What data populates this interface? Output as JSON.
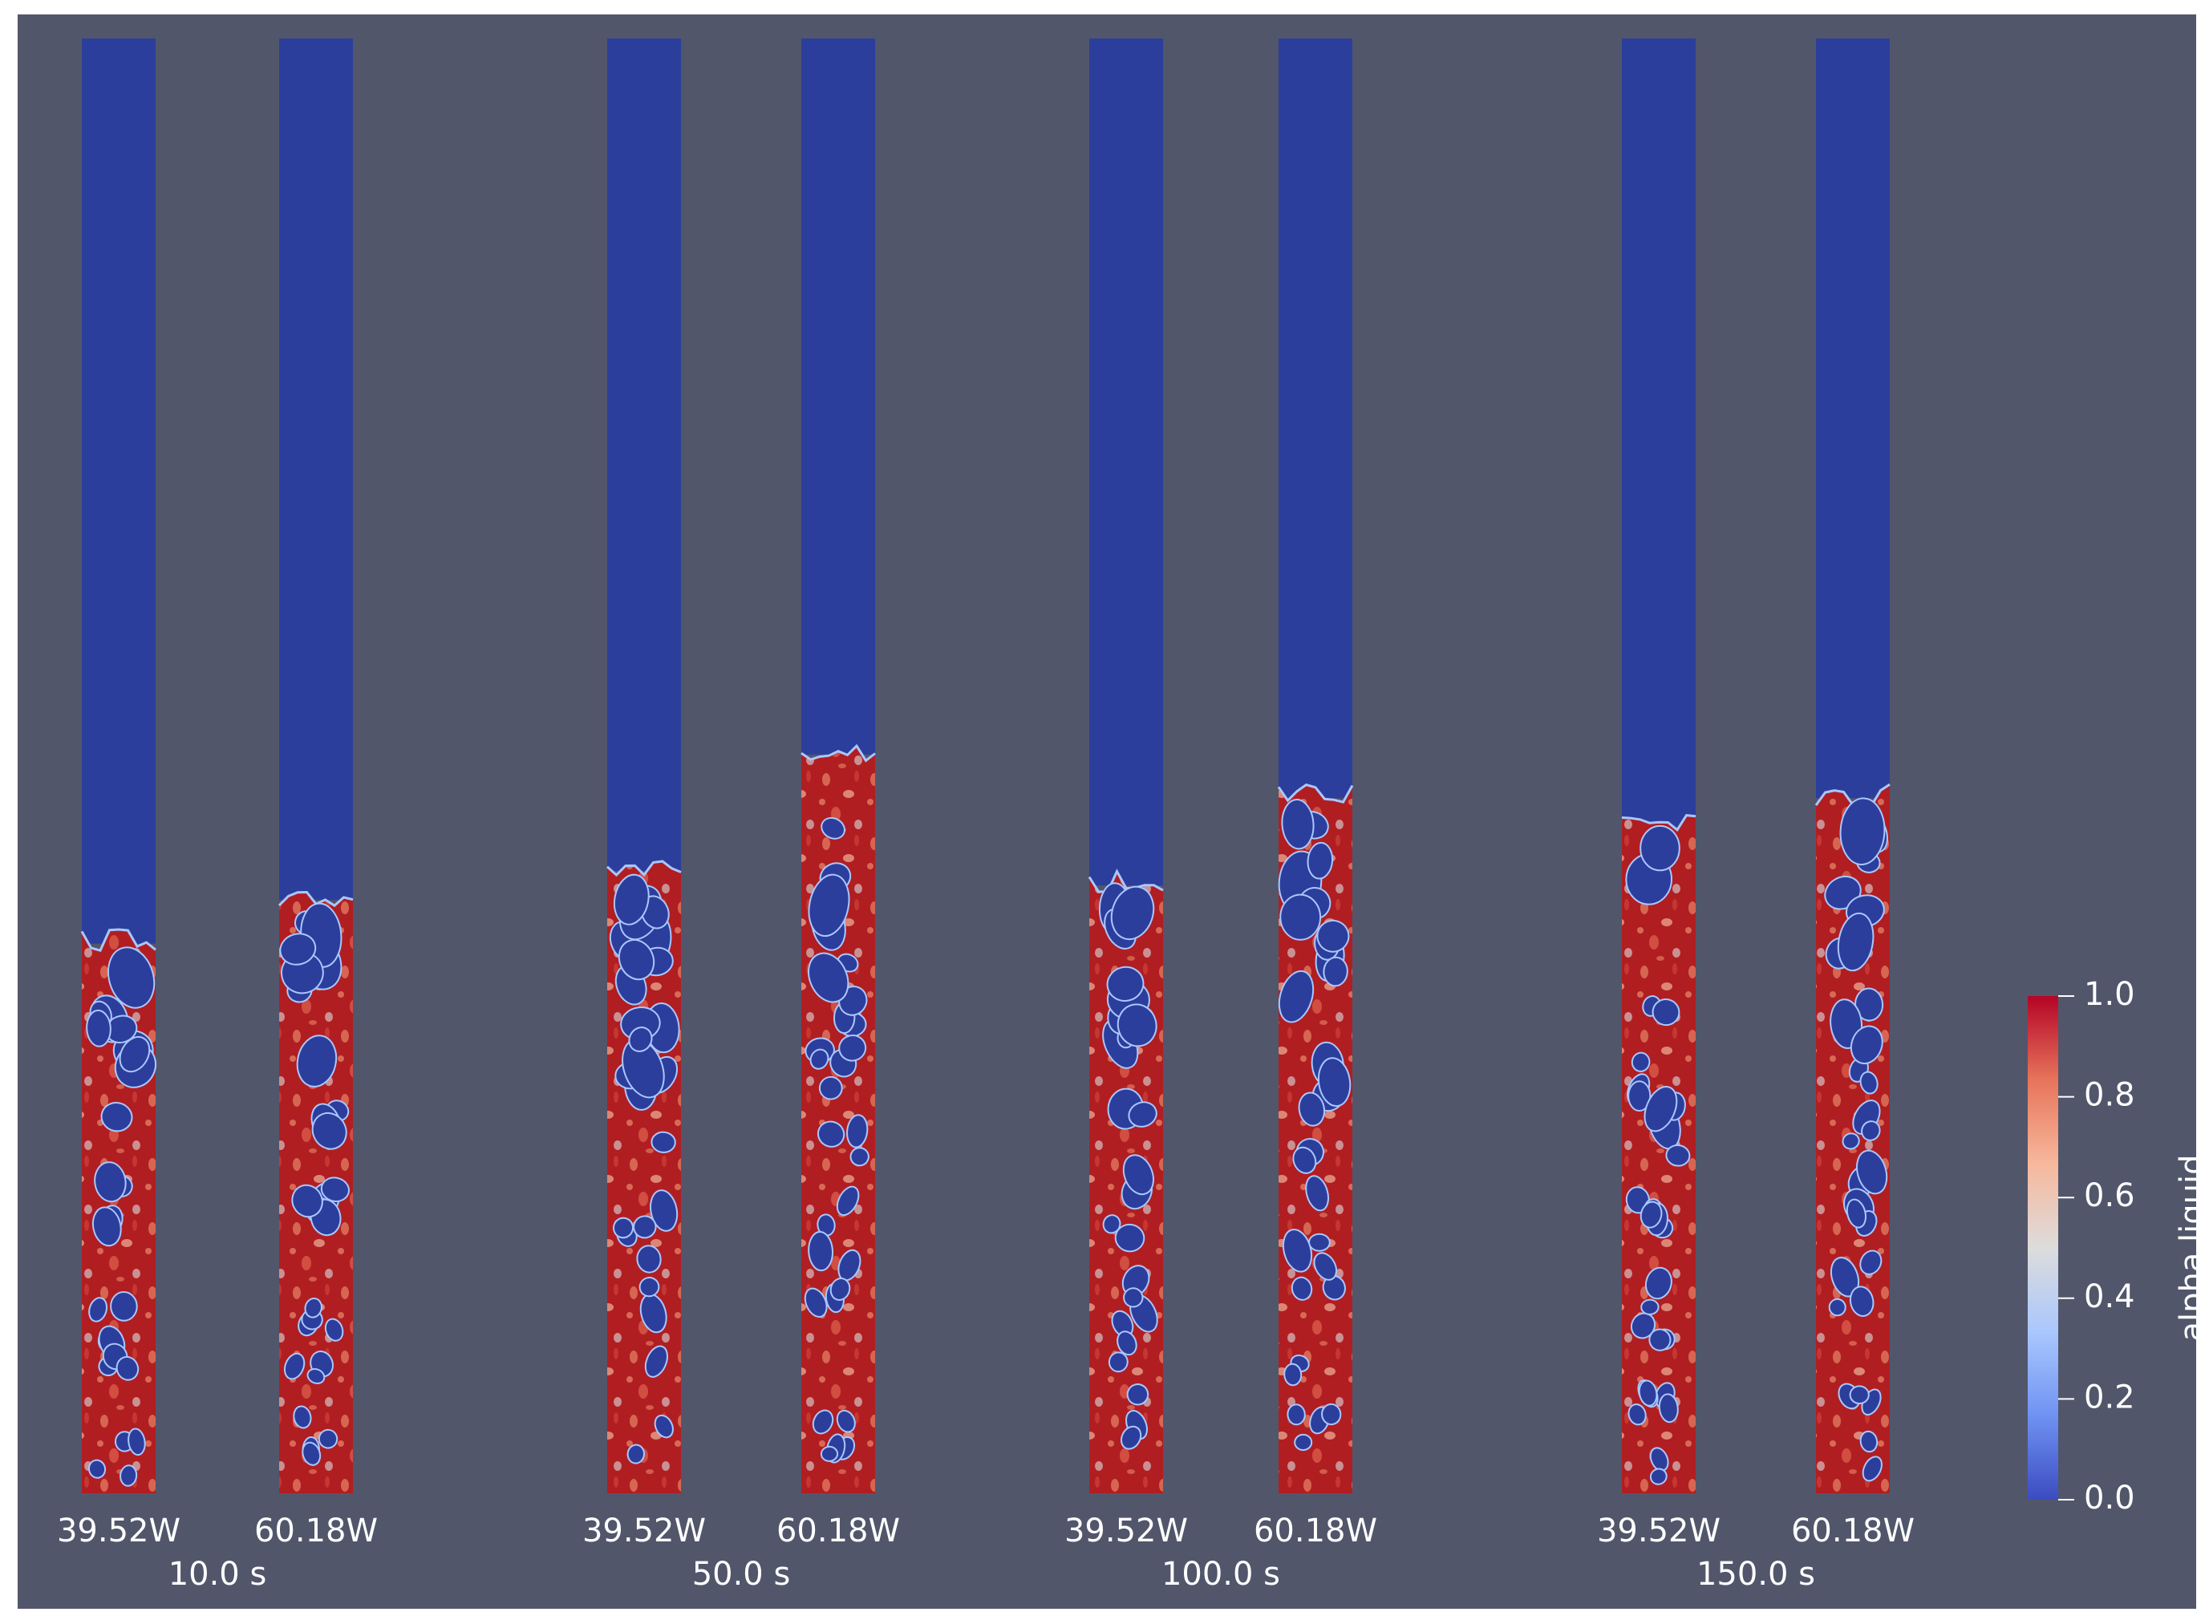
{
  "colorbar": {
    "title": "alpha.liquid",
    "range": [
      0.0,
      1.0
    ],
    "tick_labels": [
      "1.0",
      "0.8",
      "0.6",
      "0.4",
      "0.2",
      "0.0"
    ],
    "colormap": [
      "#3b4cc0",
      "#6f92f3",
      "#aac7fd",
      "#dddcdc",
      "#f7b89c",
      "#e7745b",
      "#b40426"
    ]
  },
  "colors": {
    "background": "#52566b",
    "gas": "#2c3e9c",
    "liquid": "#b01e22",
    "liquid_light": "#e0785c",
    "interface": "#aac7fd"
  },
  "groups": [
    {
      "time_label": "10.0 s",
      "columns": [
        {
          "label": "39.52W",
          "level": 0.38
        },
        {
          "label": "60.18W",
          "level": 0.41
        }
      ]
    },
    {
      "time_label": "50.0 s",
      "columns": [
        {
          "label": "39.52W",
          "level": 0.43
        },
        {
          "label": "60.18W",
          "level": 0.51
        }
      ]
    },
    {
      "time_label": "100.0 s",
      "columns": [
        {
          "label": "39.52W",
          "level": 0.42
        },
        {
          "label": "60.18W",
          "level": 0.48
        }
      ]
    },
    {
      "time_label": "150.0 s",
      "columns": [
        {
          "label": "39.52W",
          "level": 0.46
        },
        {
          "label": "60.18W",
          "level": 0.48
        }
      ]
    }
  ]
}
